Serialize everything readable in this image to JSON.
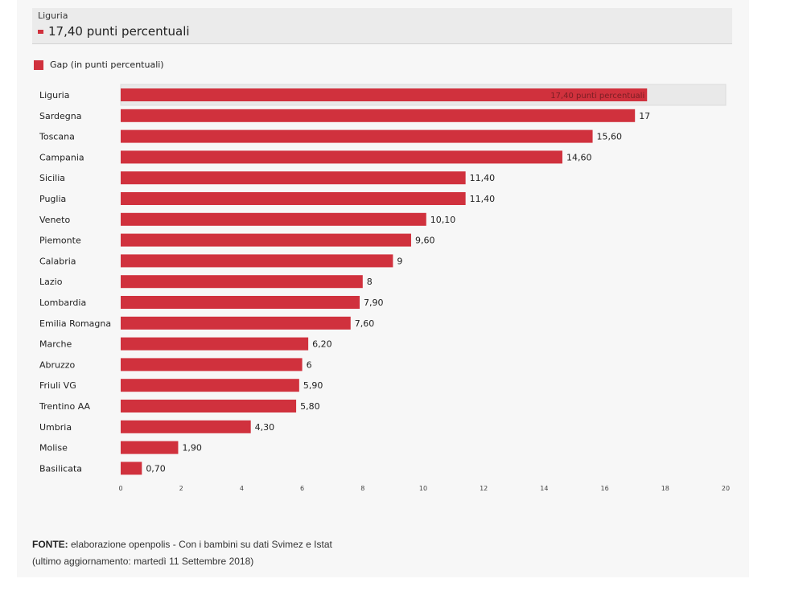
{
  "tooltip": {
    "region": "Liguria",
    "value": "17,40 punti percentuali"
  },
  "legend": {
    "label": "Gap (in punti percentuali)"
  },
  "source": {
    "label": "FONTE:",
    "text": " elaborazione openpolis - Con i bambini su dati Svimez e Istat",
    "updated": "(ultimo aggiornamento: martedì 11 Settembre 2018)"
  },
  "colors": {
    "bar": "#d0313d",
    "highlight_bg": "#e9e9e9"
  },
  "chart_data": {
    "type": "bar",
    "orientation": "horizontal",
    "title": "",
    "xlabel": "",
    "ylabel": "",
    "xlim": [
      0,
      20
    ],
    "x_ticks": [
      0,
      2,
      4,
      6,
      8,
      10,
      12,
      14,
      16,
      18,
      20
    ],
    "legend": [
      "Gap (in punti percentuali)"
    ],
    "highlighted": "Liguria",
    "highlighted_label": "17,40 punti percentuali",
    "categories": [
      "Liguria",
      "Sardegna",
      "Toscana",
      "Campania",
      "Sicilia",
      "Puglia",
      "Veneto",
      "Piemonte",
      "Calabria",
      "Lazio",
      "Lombardia",
      "Emilia Romagna",
      "Marche",
      "Abruzzo",
      "Friuli VG",
      "Trentino AA",
      "Umbria",
      "Molise",
      "Basilicata"
    ],
    "values": [
      17.4,
      17,
      15.6,
      14.6,
      11.4,
      11.4,
      10.1,
      9.6,
      9,
      8,
      7.9,
      7.6,
      6.2,
      6,
      5.9,
      5.8,
      4.3,
      1.9,
      0.7
    ],
    "value_labels": [
      "17,40 punti percentuali",
      "17",
      "15,60",
      "14,60",
      "11,40",
      "11,40",
      "10,10",
      "9,60",
      "9",
      "8",
      "7,90",
      "7,60",
      "6,20",
      "6",
      "5,90",
      "5,80",
      "4,30",
      "1,90",
      "0,70"
    ]
  }
}
